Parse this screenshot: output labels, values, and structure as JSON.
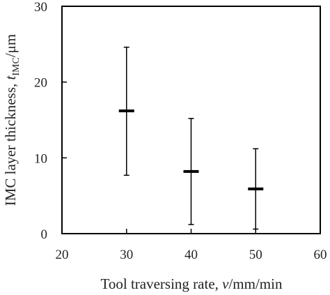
{
  "chart_data": {
    "type": "scatter",
    "title": "",
    "xlabel": {
      "prefix": "Tool traversing rate, ",
      "symbol": "v",
      "suffix": "/mm/min"
    },
    "ylabel": {
      "prefix": "IMC layer thickness, ",
      "symbol": "t",
      "subscript": "IMC",
      "suffix": "/μm"
    },
    "xlim": [
      20,
      60
    ],
    "ylim": [
      0,
      30
    ],
    "xticks": [
      "20",
      "30",
      "40",
      "50",
      "60"
    ],
    "yticks": [
      "0",
      "10",
      "20",
      "30"
    ],
    "grid": false,
    "legend": "none",
    "series": [
      {
        "x": [
          30,
          40,
          50
        ],
        "y": [
          16.2,
          8.2,
          5.9
        ],
        "y_low": [
          7.7,
          1.2,
          0.6
        ],
        "y_high": [
          24.6,
          15.2,
          11.2
        ],
        "marker": "dash",
        "color": "#000000"
      }
    ]
  }
}
